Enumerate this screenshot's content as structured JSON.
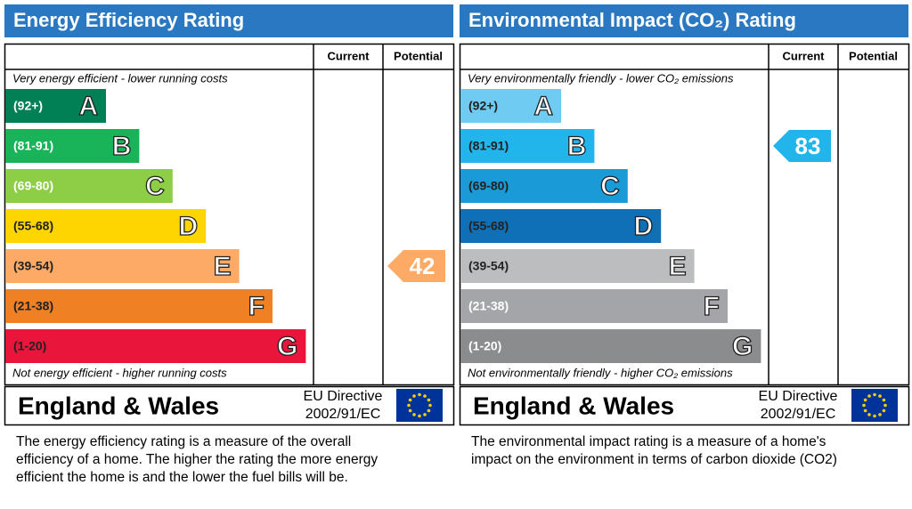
{
  "panels": [
    {
      "title": "Energy Efficiency Rating",
      "columns": {
        "current": "Current",
        "potential": "Potential"
      },
      "top_note": "Very energy efficient - lower running costs",
      "bottom_note": "Not energy efficient - higher running costs",
      "bands": [
        {
          "range": "(92+)",
          "letter": "A",
          "color": "#008054",
          "text_color": "#ffffff"
        },
        {
          "range": "(81-91)",
          "letter": "B",
          "color": "#19b459",
          "text_color": "#ffffff"
        },
        {
          "range": "(69-80)",
          "letter": "C",
          "color": "#8dce46",
          "text_color": "#ffffff"
        },
        {
          "range": "(55-68)",
          "letter": "D",
          "color": "#ffd500",
          "text_color": "#222222"
        },
        {
          "range": "(39-54)",
          "letter": "E",
          "color": "#fcaa65",
          "text_color": "#222222"
        },
        {
          "range": "(21-38)",
          "letter": "F",
          "color": "#ef8023",
          "text_color": "#222222"
        },
        {
          "range": "(1-20)",
          "letter": "G",
          "color": "#e9153b",
          "text_color": "#222222"
        }
      ],
      "ratings": {
        "potential": 42
      },
      "footer": {
        "region": "England & Wales",
        "directive_label": "EU Directive",
        "directive_code": "2002/91/EC"
      },
      "description": [
        "The energy efficiency rating is a measure of the overall",
        "efficiency of a home.  The higher the rating the more energy",
        "efficient the home is and the lower the fuel bills will be."
      ]
    },
    {
      "title": "Environmental Impact (CO₂) Rating",
      "columns": {
        "current": "Current",
        "potential": "Potential"
      },
      "top_note": "Very environmentally friendly - lower CO₂ emissions",
      "bottom_note": "Not environmentally friendly - higher CO₂ emissions",
      "bands": [
        {
          "range": "(92+)",
          "letter": "A",
          "color": "#6fcbf2",
          "text_color": "#222222"
        },
        {
          "range": "(81-91)",
          "letter": "B",
          "color": "#22b5eb",
          "text_color": "#222222"
        },
        {
          "range": "(69-80)",
          "letter": "C",
          "color": "#1a9ad7",
          "text_color": "#222222"
        },
        {
          "range": "(55-68)",
          "letter": "D",
          "color": "#0f70b7",
          "text_color": "#222222"
        },
        {
          "range": "(39-54)",
          "letter": "E",
          "color": "#bbbdbf",
          "text_color": "#222222"
        },
        {
          "range": "(21-38)",
          "letter": "F",
          "color": "#a3a5a8",
          "text_color": "#ffffff"
        },
        {
          "range": "(1-20)",
          "letter": "G",
          "color": "#8a8c8e",
          "text_color": "#ffffff"
        }
      ],
      "ratings": {
        "current": 83
      },
      "footer": {
        "region": "England & Wales",
        "directive_label": "EU Directive",
        "directive_code": "2002/91/EC"
      },
      "description": [
        "The environmental impact rating is a measure of a home's",
        "impact on the environment in terms of carbon dioxide (CO2)"
      ]
    }
  ]
}
